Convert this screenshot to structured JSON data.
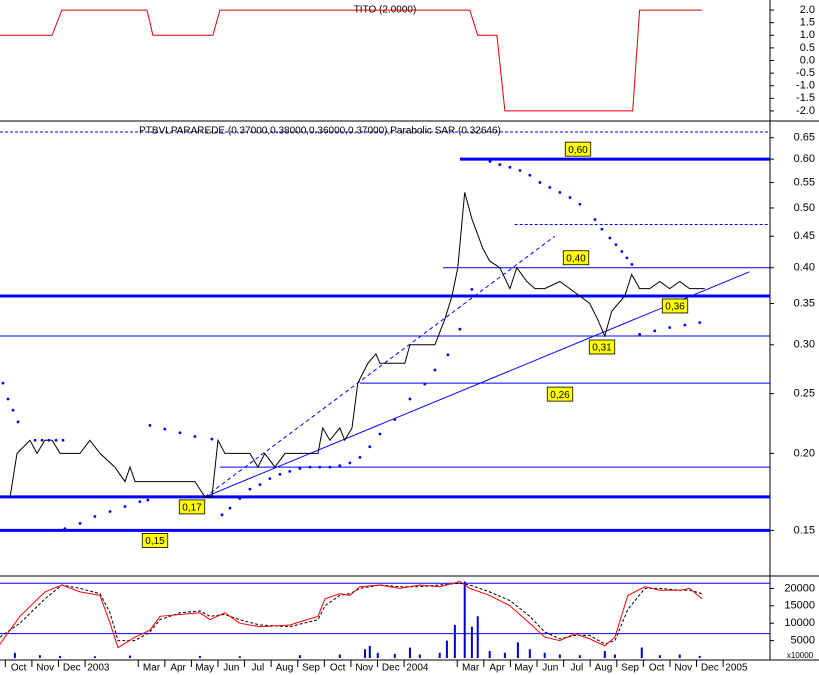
{
  "chart_data": [
    {
      "type": "line",
      "title": "TITO (2.0000)",
      "xlim": [
        -0.2,
        28.5
      ],
      "ylim": [
        -2.28,
        2.4
      ],
      "yticks": [
        {
          "value": 2,
          "label": "2.0"
        },
        1.5,
        {
          "value": 1,
          "label": "1.0"
        },
        0.5,
        {
          "value": 0,
          "label": "0.0"
        },
        -0.5,
        {
          "value": -1,
          "label": "-1.0"
        },
        -1.5,
        {
          "value": -2,
          "label": "-2.0"
        }
      ],
      "series": [
        {
          "style": "line",
          "color": "#dd0000",
          "x": [
            -0.2,
            1.76,
            2.13,
            5.33,
            5.55,
            7.81,
            8.07,
            17.47,
            17.77,
            18.49,
            18.79,
            23.6,
            23.86,
            26.2
          ],
          "values": [
            1,
            1,
            2,
            2,
            1,
            1,
            2,
            2,
            1,
            1,
            -2,
            -2,
            2,
            2
          ]
        }
      ]
    },
    {
      "type": "line",
      "title": "PTBVLPARAREDE (0.37000,0.38000,0.36000,0.37000),Parabolic SAR (0.32646)",
      "xlim": [
        -0.2,
        28.5
      ],
      "ylim": [
        0.127,
        0.669
      ],
      "log": true,
      "yticks": [
        0.15,
        {
          "value": 0.2,
          "label": "0.20"
        },
        0.25,
        {
          "value": 0.3,
          "label": "0.30"
        },
        0.35,
        {
          "value": 0.4,
          "label": "0.40"
        },
        0.45,
        {
          "value": 0.5,
          "label": "0.50"
        },
        0.55,
        {
          "value": 0.6,
          "label": "0.60"
        },
        0.65
      ],
      "series": [
        {
          "style": "line",
          "color": "#000000",
          "x": [
            0.18,
            0.44,
            0.93,
            1.19,
            1.49,
            1.76,
            2.06,
            2.81,
            3.18,
            3.56,
            4.12,
            4.5,
            4.69,
            4.88,
            7.13,
            7.51,
            7.77,
            8.0,
            8.26,
            9.2,
            9.5,
            9.76,
            10.14,
            10.52,
            11.76,
            11.94,
            12.21,
            12.58,
            12.77,
            13.04,
            13.26,
            13.64,
            13.94,
            14.09,
            15.03,
            15.22,
            15.52,
            16.16,
            16.53,
            16.8,
            17.02,
            17.28,
            17.55,
            17.96,
            18.22,
            18.6,
            18.98,
            19.24,
            19.62,
            19.92,
            20.29,
            20.86,
            21.23,
            21.61,
            21.98,
            22.28,
            22.55,
            22.81,
            23.3,
            23.56,
            23.86,
            24.24,
            24.62,
            24.99,
            25.37,
            25.74,
            26.31
          ],
          "values": [
            0.17,
            0.2,
            0.21,
            0.2,
            0.21,
            0.21,
            0.2,
            0.2,
            0.21,
            0.2,
            0.19,
            0.18,
            0.19,
            0.18,
            0.18,
            0.17,
            0.17,
            0.21,
            0.2,
            0.2,
            0.19,
            0.2,
            0.19,
            0.2,
            0.2,
            0.22,
            0.21,
            0.22,
            0.21,
            0.22,
            0.26,
            0.28,
            0.29,
            0.28,
            0.28,
            0.3,
            0.3,
            0.3,
            0.33,
            0.36,
            0.4,
            0.53,
            0.48,
            0.43,
            0.41,
            0.4,
            0.37,
            0.4,
            0.38,
            0.37,
            0.37,
            0.38,
            0.37,
            0.36,
            0.35,
            0.33,
            0.31,
            0.34,
            0.36,
            0.39,
            0.37,
            0.37,
            0.38,
            0.37,
            0.38,
            0.37,
            0.37
          ]
        },
        {
          "style": "dots",
          "color": "#0000ff",
          "x": [
            -0.09,
            0.1,
            0.29,
            0.48,
            1.12,
            1.38,
            1.64,
            1.91,
            2.17,
            2.24,
            2.81,
            3.37,
            3.94,
            4.5,
            5.06,
            5.36,
            5.44,
            6.0,
            6.57,
            7.13,
            7.77,
            8.15,
            8.45,
            8.82,
            9.2,
            9.58,
            9.95,
            10.33,
            10.7,
            11.08,
            11.46,
            11.83,
            12.21,
            12.58,
            12.96,
            13.34,
            13.71,
            14.09,
            14.65,
            15.22,
            15.78,
            16.16,
            16.65,
            17.1,
            17.55,
            17.85,
            18.23,
            18.6,
            18.98,
            19.36,
            19.73,
            20.11,
            20.48,
            20.86,
            21.24,
            21.61,
            22.18,
            22.44,
            22.74,
            22.97,
            23.19,
            23.38,
            23.57,
            23.86,
            24.43,
            24.99,
            25.56,
            26.12
          ],
          "values": [
            0.26,
            0.245,
            0.235,
            0.225,
            0.21,
            0.21,
            0.21,
            0.21,
            0.21,
            0.151,
            0.154,
            0.158,
            0.161,
            0.164,
            0.167,
            0.168,
            0.222,
            0.219,
            0.216,
            0.213,
            0.211,
            0.159,
            0.163,
            0.169,
            0.175,
            0.178,
            0.182,
            0.185,
            0.187,
            0.189,
            0.19,
            0.19,
            0.19,
            0.191,
            0.193,
            0.197,
            0.205,
            0.215,
            0.227,
            0.245,
            0.259,
            0.273,
            0.289,
            0.318,
            0.369,
            0.6,
            0.595,
            0.588,
            0.582,
            0.575,
            0.565,
            0.55,
            0.54,
            0.53,
            0.52,
            0.507,
            0.479,
            0.462,
            0.447,
            0.436,
            0.425,
            0.415,
            0.405,
            0.312,
            0.316,
            0.32,
            0.323,
            0.326
          ]
        }
      ],
      "levels": [
        {
          "value": 0.6,
          "label": "0,60",
          "from": 17.1,
          "style": "thick"
        },
        {
          "value": 0.47,
          "from": 19.16,
          "style": "dashed"
        },
        {
          "value": 0.4,
          "label": "0,40",
          "from": 16.46,
          "style": "thin"
        },
        {
          "value": 0.36,
          "label": "0,36",
          "from": -0.2,
          "style": "thick"
        },
        {
          "value": 0.31,
          "label": "0,31",
          "from": -0.2,
          "style": "thin"
        },
        {
          "value": 0.26,
          "label": "0,26",
          "from": 13.34,
          "style": "thin"
        },
        {
          "value": 0.19,
          "from": 8.07,
          "style": "thin"
        },
        {
          "value": 0.17,
          "label": "0,17",
          "from": -0.2,
          "style": "thick"
        },
        {
          "value": 0.15,
          "label": "0,15",
          "from": -0.2,
          "style": "thick"
        }
      ],
      "trendlines": [
        {
          "x": [
            7.51,
            27.99
          ],
          "y": [
            0.17,
            0.394
          ],
          "style": "solid"
        },
        {
          "x": [
            7.51,
            20.67
          ],
          "y": [
            0.17,
            0.45
          ],
          "style": "dashed"
        }
      ]
    },
    {
      "type": "line",
      "scale_label": "x10000",
      "xlim": [
        -0.2,
        28.5
      ],
      "ylim": [
        0,
        23000
      ],
      "yticks": [
        20000,
        15000,
        10000,
        5000
      ],
      "xticks": [
        {
          "value": 0,
          "label": "Oct"
        },
        {
          "value": 1,
          "label": "Nov"
        },
        {
          "value": 2,
          "label": "Dec"
        },
        {
          "value": 3,
          "label": "2003"
        },
        {
          "value": 5,
          "label": "Mar"
        },
        {
          "value": 6,
          "label": "Apr"
        },
        {
          "value": 7,
          "label": "May"
        },
        {
          "value": 8,
          "label": "Jun"
        },
        {
          "value": 9,
          "label": "Jul"
        },
        {
          "value": 10,
          "label": "Aug"
        },
        {
          "value": 11,
          "label": "Sep"
        },
        {
          "value": 12,
          "label": "Oct"
        },
        {
          "value": 13,
          "label": "Nov"
        },
        {
          "value": 14,
          "label": "Dec"
        },
        {
          "value": 15,
          "label": "2004"
        },
        {
          "value": 17,
          "label": "Mar"
        },
        {
          "value": 18,
          "label": "Apr"
        },
        {
          "value": 19,
          "label": "May"
        },
        {
          "value": 20,
          "label": "Jun"
        },
        {
          "value": 21,
          "label": "Jul"
        },
        {
          "value": 22,
          "label": "Aug"
        },
        {
          "value": 23,
          "label": "Sep"
        },
        {
          "value": 24,
          "label": "Oct"
        },
        {
          "value": 25,
          "label": "Nov"
        },
        {
          "value": 26,
          "label": "Dec"
        },
        {
          "value": 27,
          "label": "2005"
        }
      ],
      "series": [
        {
          "style": "bars",
          "color": "#0000cc",
          "x": [
            0.36,
            1.3,
            2.06,
            3.37,
            4.69,
            7.32,
            8.82,
            11.08,
            12.58,
            13.53,
            13.71,
            14.01,
            14.65,
            15.22,
            15.59,
            16.34,
            16.61,
            16.91,
            17.28,
            17.55,
            17.77,
            18.22,
            18.79,
            19.28,
            19.73,
            20.29,
            20.86,
            21.61,
            22.55,
            22.93,
            23.94,
            24.62,
            25.37,
            26.12
          ],
          "values": [
            1500,
            800,
            600,
            500,
            700,
            600,
            500,
            800,
            1000,
            2500,
            3500,
            1500,
            1200,
            3000,
            1000,
            1500,
            5000,
            9500,
            22000,
            9000,
            12000,
            2000,
            1500,
            4500,
            2500,
            1500,
            1000,
            800,
            2000,
            1000,
            3000,
            800,
            1000,
            600
          ]
        },
        {
          "style": "dashed",
          "color": "#000000",
          "x": [
            -0.2,
            0.55,
            1.49,
            2.13,
            2.81,
            3.56,
            3.94,
            4.24,
            4.88,
            5.44,
            5.82,
            6.57,
            7.32,
            7.7,
            8.26,
            8.82,
            9.58,
            10.7,
            11.76,
            12.02,
            12.58,
            12.96,
            13.34,
            14.09,
            14.84,
            15.59,
            16.34,
            17.1,
            17.47,
            18.22,
            18.98,
            19.73,
            20.29,
            20.86,
            21.42,
            21.98,
            22.55,
            22.93,
            23.42,
            24.06,
            24.62,
            25.37,
            25.74,
            26.2
          ],
          "values": [
            6000,
            10000,
            17000,
            21000,
            20000,
            18500,
            13000,
            5000,
            5000,
            7500,
            11000,
            13000,
            13500,
            12000,
            12500,
            11000,
            9500,
            9000,
            11000,
            15000,
            18000,
            18500,
            20000,
            21000,
            20500,
            20500,
            21000,
            21500,
            21000,
            19000,
            16500,
            12000,
            7500,
            5500,
            6500,
            6500,
            4000,
            5000,
            14000,
            20000,
            20000,
            19500,
            19500,
            18500
          ]
        },
        {
          "style": "line",
          "color": "#ff0000",
          "x": [
            -0.2,
            0.55,
            1.49,
            2.13,
            2.81,
            3.56,
            3.94,
            4.24,
            4.88,
            5.44,
            5.82,
            6.57,
            7.32,
            7.7,
            8.26,
            8.82,
            9.58,
            10.7,
            11.76,
            12.02,
            12.58,
            12.96,
            13.34,
            14.09,
            14.84,
            15.59,
            16.34,
            17.1,
            17.47,
            18.22,
            18.98,
            19.73,
            20.29,
            20.86,
            21.42,
            21.98,
            22.55,
            22.93,
            23.42,
            24.06,
            24.62,
            25.37,
            25.74,
            26.2
          ],
          "values": [
            4000,
            12000,
            19000,
            21000,
            19000,
            18000,
            10000,
            3000,
            6000,
            8000,
            12000,
            12500,
            13000,
            11000,
            13000,
            10000,
            9000,
            9500,
            12000,
            17000,
            18500,
            18000,
            20500,
            21000,
            20000,
            21000,
            20500,
            22000,
            20000,
            18000,
            15000,
            10000,
            6000,
            5000,
            7000,
            5500,
            3500,
            6000,
            18000,
            20500,
            19500,
            19500,
            20000,
            17000
          ]
        }
      ],
      "levels": [
        {
          "value": 21500,
          "from": -0.2,
          "style": "thin"
        },
        {
          "value": 7000,
          "from": -0.2,
          "style": "thin"
        }
      ]
    }
  ]
}
